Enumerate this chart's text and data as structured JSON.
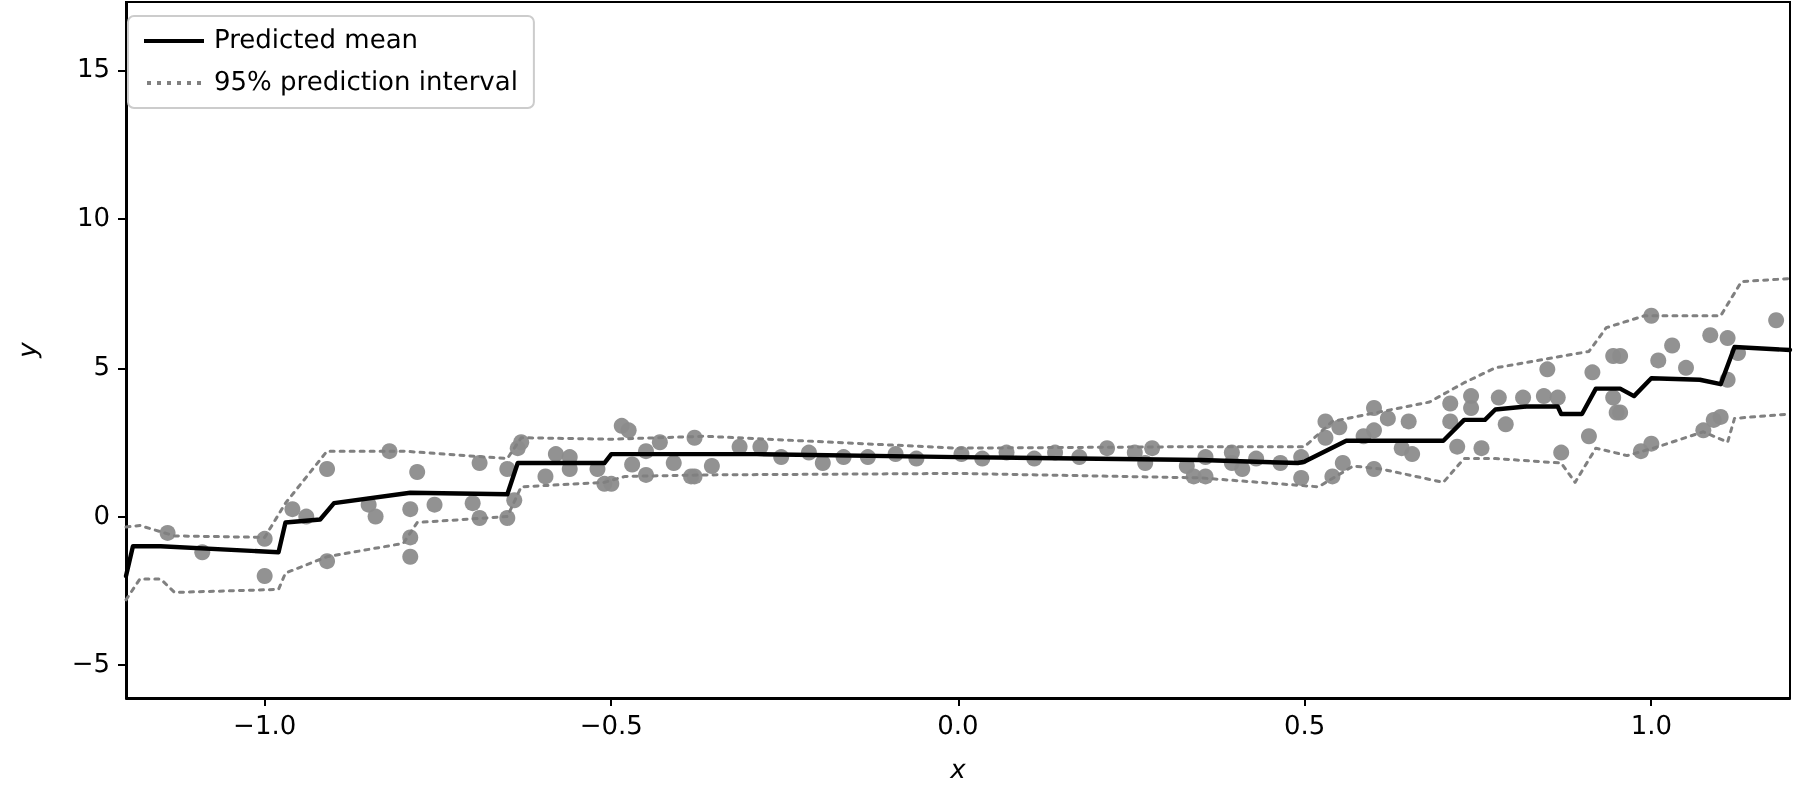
{
  "chart_data": {
    "type": "scatter",
    "xlabel": "x",
    "ylabel": "y",
    "xlim": [
      -1.2,
      1.2
    ],
    "ylim": [
      -6.1,
      17.3
    ],
    "xticks": [
      {
        "value": -1,
        "label": "−1.0"
      },
      {
        "value": -0.5,
        "label": "−0.5"
      },
      {
        "value": 0,
        "label": "0.0"
      },
      {
        "value": 0.5,
        "label": "0.5"
      },
      {
        "value": 1,
        "label": "1.0"
      }
    ],
    "yticks": [
      {
        "value": -5,
        "label": "−5"
      },
      0,
      5,
      10,
      15
    ],
    "grid": false,
    "legend": "top left",
    "marker": "circle",
    "series": [
      {
        "color": "#8c8c8c",
        "x": [
          -1.14,
          -1.09,
          -1.0,
          -1.0,
          -0.96,
          -0.94,
          -0.91,
          -0.91,
          -0.82,
          -0.85,
          -0.84,
          -0.79,
          -0.79,
          -0.79,
          -0.78,
          -0.755,
          -0.7,
          -0.69,
          -0.69,
          -0.65,
          -0.65,
          -0.64,
          -0.635,
          -0.63,
          -0.595,
          -0.58,
          -0.56,
          -0.56,
          -0.52,
          -0.51,
          -0.5,
          -0.485,
          -0.475,
          -0.47,
          -0.45,
          -0.45,
          -0.43,
          -0.41,
          -0.38,
          -0.38,
          -0.385,
          -0.355,
          -0.315,
          -0.285,
          -0.255,
          -0.215,
          -0.195,
          -0.165,
          -0.13,
          -0.09,
          -0.06,
          0.005,
          0.035,
          0.07,
          0.11,
          0.14,
          0.175,
          0.215,
          0.255,
          0.27,
          0.28,
          0.33,
          0.34,
          0.357,
          0.357,
          0.395,
          0.395,
          0.41,
          0.43,
          0.465,
          0.495,
          0.495,
          0.53,
          0.53,
          0.54,
          0.55,
          0.555,
          0.585,
          0.6,
          0.6,
          0.6,
          0.62,
          0.64,
          0.65,
          0.655,
          0.71,
          0.71,
          0.72,
          0.74,
          0.74,
          0.755,
          0.78,
          0.79,
          0.815,
          0.845,
          0.85,
          0.865,
          0.87,
          0.91,
          0.915,
          0.945,
          0.955,
          0.945,
          0.95,
          0.955,
          0.985,
          1.0,
          1.0,
          1.01,
          1.03,
          1.05,
          1.075,
          1.085,
          1.09,
          1.1,
          1.11,
          1.11,
          1.125,
          1.18
        ],
        "values": [
          -0.55,
          -1.2,
          -0.75,
          -2.0,
          0.25,
          0.0,
          1.6,
          -1.5,
          2.2,
          0.4,
          0.0,
          0.25,
          -0.7,
          -1.35,
          1.5,
          0.4,
          0.45,
          1.8,
          -0.05,
          1.6,
          -0.05,
          0.55,
          2.3,
          2.5,
          1.35,
          2.1,
          2.0,
          1.6,
          1.6,
          1.1,
          1.1,
          3.05,
          2.9,
          1.75,
          2.2,
          1.4,
          2.5,
          1.8,
          2.65,
          1.35,
          1.35,
          1.7,
          2.35,
          2.35,
          2.0,
          2.15,
          1.8,
          2.0,
          2.0,
          2.1,
          1.95,
          2.1,
          1.95,
          2.15,
          1.95,
          2.15,
          2.0,
          2.3,
          2.15,
          1.8,
          2.3,
          1.7,
          1.35,
          2.0,
          1.35,
          2.15,
          1.8,
          1.6,
          1.95,
          1.8,
          2.0,
          1.3,
          3.2,
          2.65,
          1.35,
          3.0,
          1.8,
          2.7,
          3.65,
          1.6,
          2.9,
          3.3,
          2.3,
          3.2,
          2.1,
          3.8,
          3.2,
          2.35,
          4.05,
          3.65,
          2.3,
          4.0,
          3.1,
          4.0,
          4.05,
          4.95,
          4.0,
          2.15,
          2.7,
          4.85,
          5.4,
          5.4,
          4.0,
          3.5,
          3.5,
          2.2,
          2.45,
          6.75,
          5.25,
          5.75,
          5.0,
          2.9,
          6.1,
          3.25,
          3.35,
          6.0,
          4.6,
          5.5,
          6.6
        ]
      },
      {
        "type": "line",
        "name": "Predicted mean",
        "color": "#000000",
        "marker": "none",
        "line_style": "solid",
        "x": [
          -1.2,
          -1.19,
          -1.15,
          -0.98,
          -0.97,
          -0.92,
          -0.9,
          -0.79,
          -0.65,
          -0.635,
          -0.51,
          -0.5,
          -0.29,
          0.0,
          0.35,
          0.49,
          0.5,
          0.56,
          0.7,
          0.73,
          0.76,
          0.775,
          0.82,
          0.865,
          0.87,
          0.9,
          0.92,
          0.955,
          0.975,
          1.0,
          1.07,
          1.1,
          1.12,
          1.2
        ],
        "values": [
          -2.0,
          -1.0,
          -1.0,
          -1.2,
          -0.2,
          -0.1,
          0.45,
          0.8,
          0.75,
          1.8,
          1.8,
          2.1,
          2.1,
          2.0,
          1.9,
          1.8,
          1.85,
          2.55,
          2.55,
          3.25,
          3.25,
          3.6,
          3.7,
          3.7,
          3.45,
          3.45,
          4.3,
          4.3,
          4.05,
          4.65,
          4.6,
          4.45,
          5.7,
          5.6
        ]
      },
      {
        "type": "line",
        "name": "95% prediction interval",
        "color": "#808080",
        "marker": "none",
        "line_style": "dotted",
        "x": [
          -1.2,
          -1.18,
          -1.13,
          -1.0,
          -0.97,
          -0.91,
          -0.8,
          -0.65,
          -0.63,
          -0.5,
          -0.365,
          0.0,
          0.35,
          0.5,
          0.54,
          0.68,
          0.73,
          0.775,
          0.91,
          0.935,
          0.99,
          1.1,
          1.13,
          1.2
        ],
        "values": [
          -0.35,
          -0.3,
          -0.65,
          -0.7,
          0.45,
          2.2,
          2.2,
          1.95,
          2.65,
          2.6,
          2.7,
          2.3,
          2.35,
          2.35,
          3.2,
          3.85,
          4.5,
          5.0,
          5.55,
          6.35,
          6.75,
          6.75,
          7.9,
          8.0
        ]
      },
      {
        "type": "line",
        "color": "#808080",
        "marker": "none",
        "line_style": "dotted",
        "x": [
          -1.2,
          -1.18,
          -1.15,
          -1.13,
          -0.98,
          -0.97,
          -0.91,
          -0.8,
          -0.78,
          -0.65,
          -0.63,
          -0.51,
          -0.48,
          -0.365,
          0.0,
          0.35,
          0.52,
          0.57,
          0.61,
          0.66,
          0.7,
          0.73,
          0.775,
          0.87,
          0.89,
          0.92,
          0.965,
          1.01,
          1.075,
          1.11,
          1.12,
          1.2
        ],
        "values": [
          -2.8,
          -2.1,
          -2.1,
          -2.55,
          -2.45,
          -1.9,
          -1.35,
          -0.9,
          -0.2,
          0.0,
          1.0,
          1.15,
          1.35,
          1.4,
          1.45,
          1.3,
          1.0,
          1.7,
          1.6,
          1.35,
          1.15,
          1.95,
          1.95,
          1.8,
          1.15,
          2.3,
          2.05,
          2.35,
          2.85,
          2.5,
          3.3,
          3.45
        ]
      }
    ]
  }
}
